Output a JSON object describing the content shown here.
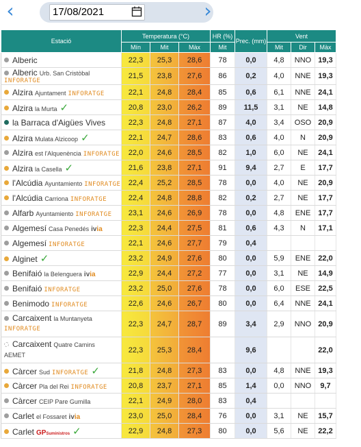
{
  "date": "17/08/2021",
  "colors": {
    "header_bg": "#1c8a83",
    "nav_arrow": "#3b8ad8",
    "brand_orange": "#e08a1e",
    "check_green": "#3aa83a",
    "gp_red": "#cc1d1d",
    "prec_bg": "#dfe6f3"
  },
  "header": {
    "estacio": "Estació",
    "temperatura": "Temperatura (°C)",
    "hr": "HR (%)",
    "prec": "Prec. (mm)",
    "vent": "Vent",
    "min": "Mín",
    "mit": "Mit",
    "max": "Màx",
    "hr_mit": "Mit",
    "vent_mit": "Mit",
    "vent_dir": "Dir",
    "vent_max": "Màx"
  },
  "brand_inforatge": "INFORATGE",
  "brand_ivia_i": "iv",
  "brand_ivia_a": "ia",
  "brand_aemet": "AEMET",
  "brand_gp": "GP",
  "brand_gp_small": "Suministros",
  "check_icon": "✓",
  "rows": [
    {
      "name": "Alberic",
      "sub": "",
      "dot": "#9e9e9e",
      "min": "22,3",
      "mit": "25,3",
      "max": "28,6",
      "hr": "78",
      "prec": "0,0",
      "vmit": "4,8",
      "dir": "NNO",
      "vmax": "19,3"
    },
    {
      "name": "Alberic",
      "sub": "Urb. San Cristòbal",
      "dot": "#9e9e9e",
      "min": "21,5",
      "mit": "23,8",
      "max": "27,6",
      "hr": "86",
      "prec": "0,2",
      "vmit": "4,0",
      "dir": "NNE",
      "vmax": "19,3"
    },
    {
      "name": "Alzira",
      "sub": "Ajuntament",
      "dot": "#e8a83a",
      "min": "22,1",
      "mit": "24,8",
      "max": "28,4",
      "hr": "85",
      "prec": "0,6",
      "vmit": "6,1",
      "dir": "NNE",
      "vmax": "24,1"
    },
    {
      "name": "Alzira",
      "sub": "la Murta",
      "dot": "#e8a83a",
      "min": "20,8",
      "mit": "23,0",
      "max": "26,2",
      "hr": "89",
      "prec": "11,5",
      "vmit": "3,1",
      "dir": "NE",
      "vmax": "14,8"
    },
    {
      "name": "la Barraca d'Aigües Vives",
      "sub": "",
      "dot": "#1f6b5f",
      "min": "22,3",
      "mit": "24,8",
      "max": "27,1",
      "hr": "87",
      "prec": "4,0",
      "vmit": "3,4",
      "dir": "OSO",
      "vmax": "20,9"
    },
    {
      "name": "Alzira",
      "sub": "Mulata Alzicoop",
      "dot": "#e8a83a",
      "min": "22,1",
      "mit": "24,7",
      "max": "28,6",
      "hr": "83",
      "prec": "0,6",
      "vmit": "4,0",
      "dir": "N",
      "vmax": "20,9"
    },
    {
      "name": "Alzira",
      "sub": "est l'Alquenència",
      "dot": "#9e9e9e",
      "min": "22,0",
      "mit": "24,6",
      "max": "28,5",
      "hr": "82",
      "prec": "1,0",
      "vmit": "6,0",
      "dir": "NE",
      "vmax": "24,1"
    },
    {
      "name": "Alzira",
      "sub": "la Casella",
      "dot": "#e8a83a",
      "min": "21,6",
      "mit": "23,8",
      "max": "27,1",
      "hr": "91",
      "prec": "9,4",
      "vmit": "2,7",
      "dir": "E",
      "vmax": "17,7"
    },
    {
      "name": "l'Alcúdia",
      "sub": "Ayuntamiento",
      "dot": "#e8a83a",
      "min": "22,4",
      "mit": "25,2",
      "max": "28,5",
      "hr": "78",
      "prec": "0,0",
      "vmit": "4,0",
      "dir": "NE",
      "vmax": "20,9"
    },
    {
      "name": "l'Alcúdia",
      "sub": "Carriona",
      "dot": "#e8a83a",
      "min": "22,4",
      "mit": "24,8",
      "max": "28,8",
      "hr": "82",
      "prec": "0,2",
      "vmit": "2,7",
      "dir": "NE",
      "vmax": "17,7"
    },
    {
      "name": "Alfarb",
      "sub": "Ayuntamiento",
      "dot": "#9e9e9e",
      "min": "23,1",
      "mit": "24,6",
      "max": "26,9",
      "hr": "78",
      "prec": "0,0",
      "vmit": "4,8",
      "dir": "ENE",
      "vmax": "17,7"
    },
    {
      "name": "Algemesí",
      "sub": "Casa Penedés",
      "dot": "#9e9e9e",
      "min": "22,3",
      "mit": "24,4",
      "max": "27,5",
      "hr": "81",
      "prec": "0,6",
      "vmit": "4,3",
      "dir": "N",
      "vmax": "17,1"
    },
    {
      "name": "Algemesí",
      "sub": "",
      "dot": "#9e9e9e",
      "min": "22,1",
      "mit": "24,6",
      "max": "27,7",
      "hr": "79",
      "prec": "0,4",
      "vmit": "",
      "dir": "",
      "vmax": ""
    },
    {
      "name": "Alginet",
      "sub": "",
      "dot": "#e8a83a",
      "min": "23,2",
      "mit": "24,9",
      "max": "27,6",
      "hr": "80",
      "prec": "0,0",
      "vmit": "5,9",
      "dir": "ENE",
      "vmax": "22,0"
    },
    {
      "name": "Benifaió",
      "sub": "la Belenguera",
      "dot": "#9e9e9e",
      "min": "22,9",
      "mit": "24,4",
      "max": "27,2",
      "hr": "77",
      "prec": "0,0",
      "vmit": "3,1",
      "dir": "NE",
      "vmax": "14,9"
    },
    {
      "name": "Benifaió",
      "sub": "",
      "dot": "#9e9e9e",
      "min": "23,2",
      "mit": "25,0",
      "max": "27,6",
      "hr": "78",
      "prec": "0,0",
      "vmit": "6,0",
      "dir": "ESE",
      "vmax": "22,5"
    },
    {
      "name": "Benimodo",
      "sub": "",
      "dot": "#9e9e9e",
      "min": "22,6",
      "mit": "24,6",
      "max": "26,7",
      "hr": "80",
      "prec": "0,0",
      "vmit": "6,4",
      "dir": "NNE",
      "vmax": "24,1"
    },
    {
      "name": "Carcaixent",
      "sub": "la Muntanyeta",
      "dot": "#9e9e9e",
      "min": "22,3",
      "mit": "24,7",
      "max": "28,7",
      "hr": "89",
      "prec": "3,4",
      "vmit": "2,9",
      "dir": "NNO",
      "vmax": "20,9"
    },
    {
      "name": "Carcaixent",
      "sub": "Quatre Camins",
      "dot": "",
      "min": "22,3",
      "mit": "25,3",
      "max": "28,4",
      "hr": "",
      "prec": "9,6",
      "vmit": "",
      "dir": "",
      "vmax": "22,0"
    },
    {
      "name": "Càrcer",
      "sub": "Sud",
      "dot": "#e8a83a",
      "min": "21,8",
      "mit": "24,8",
      "max": "27,3",
      "hr": "83",
      "prec": "0,0",
      "vmit": "4,8",
      "dir": "NNE",
      "vmax": "19,3"
    },
    {
      "name": "Càrcer",
      "sub": "Pla del Rei",
      "dot": "#e8a83a",
      "min": "20,8",
      "mit": "23,7",
      "max": "27,1",
      "hr": "85",
      "prec": "1,4",
      "vmit": "0,0",
      "dir": "NNO",
      "vmax": "9,7"
    },
    {
      "name": "Càrcer",
      "sub": "CEIP Pare Gumilla",
      "dot": "#9e9e9e",
      "min": "22,1",
      "mit": "24,9",
      "max": "28,0",
      "hr": "83",
      "prec": "0,4",
      "vmit": "",
      "dir": "",
      "vmax": ""
    },
    {
      "name": "Carlet",
      "sub": "el Fossaret",
      "dot": "#9e9e9e",
      "min": "23,0",
      "mit": "25,0",
      "max": "28,4",
      "hr": "76",
      "prec": "0,0",
      "vmit": "3,1",
      "dir": "NE",
      "vmax": "15,7"
    },
    {
      "name": "Carlet",
      "sub": "",
      "dot": "#e8a83a",
      "min": "22,9",
      "mit": "24,8",
      "max": "27,3",
      "hr": "80",
      "prec": "0,0",
      "vmit": "5,6",
      "dir": "NE",
      "vmax": "22,2"
    }
  ]
}
